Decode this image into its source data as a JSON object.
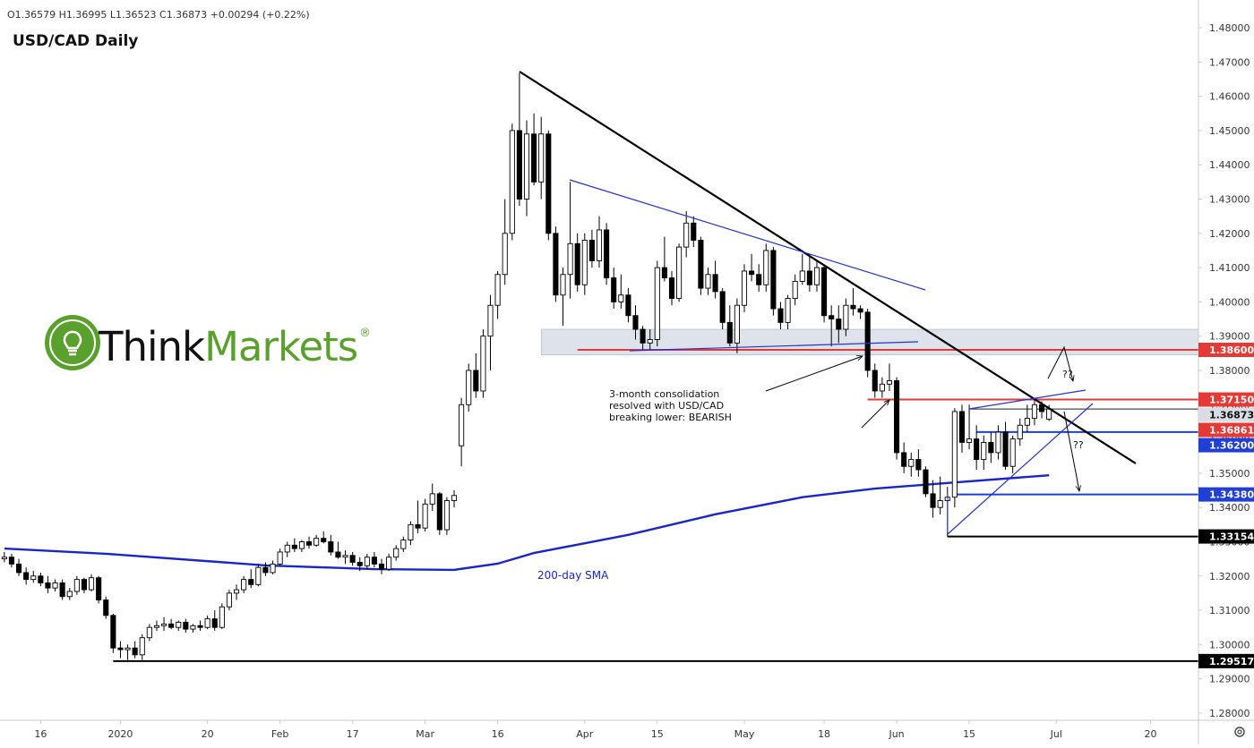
{
  "chart_data": {
    "type": "candlestick",
    "title": "USD/CAD Daily",
    "ohlc_legend": "O1.36579 H1.36995 L1.36523 C1.36873 +0.00294 (+0.22%)",
    "logo": {
      "text_1": "Think",
      "text_2": "Markets",
      "mark": "®"
    },
    "annotations": {
      "consolidation": [
        "3-month consolidation",
        "resolved with USD/CAD",
        "breaking lower: BEARISH"
      ],
      "question_marks": [
        "??",
        "??"
      ]
    },
    "colors": {
      "up": "#ffffff",
      "down": "#000000",
      "outline": "#000000"
    },
    "xlim": [
      -0.6,
      164.6
    ],
    "ylim": [
      1.2779,
      1.4881
    ],
    "xticks": [
      {
        "value": 5,
        "label": "16"
      },
      {
        "value": 16,
        "label": "2020"
      },
      {
        "value": 28,
        "label": "20"
      },
      {
        "value": 38,
        "label": "Feb"
      },
      {
        "value": 48,
        "label": "17"
      },
      {
        "value": 58,
        "label": "Mar"
      },
      {
        "value": 68,
        "label": "16"
      },
      {
        "value": 80,
        "label": "Apr"
      },
      {
        "value": 90,
        "label": "15"
      },
      {
        "value": 102,
        "label": "May"
      },
      {
        "value": 113,
        "label": "18"
      },
      {
        "value": 123,
        "label": "Jun"
      },
      {
        "value": 133,
        "label": "15"
      },
      {
        "value": 145,
        "label": "Jul"
      },
      {
        "value": 158,
        "label": "20"
      }
    ],
    "yticks": [
      {
        "value": 1.28,
        "label": "1.28000"
      },
      {
        "value": 1.29,
        "label": "1.29000"
      },
      {
        "value": 1.3,
        "label": "1.30000"
      },
      {
        "value": 1.31,
        "label": "1.31000"
      },
      {
        "value": 1.32,
        "label": "1.32000"
      },
      {
        "value": 1.33,
        "label": "1.33000"
      },
      {
        "value": 1.34,
        "label": "1.34000"
      },
      {
        "value": 1.35,
        "label": "1.35000"
      },
      {
        "value": 1.36,
        "label": "1.36000"
      },
      {
        "value": 1.37,
        "label": "1.37000"
      },
      {
        "value": 1.38,
        "label": "1.38000"
      },
      {
        "value": 1.39,
        "label": "1.39000"
      },
      {
        "value": 1.4,
        "label": "1.40000"
      },
      {
        "value": 1.41,
        "label": "1.41000"
      },
      {
        "value": 1.42,
        "label": "1.42000"
      },
      {
        "value": 1.43,
        "label": "1.43000"
      },
      {
        "value": 1.44,
        "label": "1.44000"
      },
      {
        "value": 1.45,
        "label": "1.45000"
      },
      {
        "value": 1.46,
        "label": "1.46000"
      },
      {
        "value": 1.47,
        "label": "1.47000"
      },
      {
        "value": 1.48,
        "label": "1.48000"
      }
    ],
    "candles": [
      [
        1.325,
        1.327,
        1.324,
        1.3255
      ],
      [
        1.3255,
        1.3265,
        1.3225,
        1.3235
      ],
      [
        1.3235,
        1.325,
        1.32,
        1.321
      ],
      [
        1.321,
        1.3225,
        1.3175,
        1.319
      ],
      [
        1.319,
        1.3215,
        1.318,
        1.32
      ],
      [
        1.32,
        1.321,
        1.317,
        1.318
      ],
      [
        1.318,
        1.32,
        1.315,
        1.3165
      ],
      [
        1.3165,
        1.319,
        1.3155,
        1.318
      ],
      [
        1.318,
        1.319,
        1.313,
        1.314
      ],
      [
        1.314,
        1.3165,
        1.313,
        1.3155
      ],
      [
        1.3155,
        1.32,
        1.3145,
        1.319
      ],
      [
        1.319,
        1.3195,
        1.315,
        1.316
      ],
      [
        1.316,
        1.3205,
        1.3155,
        1.3195
      ],
      [
        1.3195,
        1.32,
        1.312,
        1.313
      ],
      [
        1.313,
        1.314,
        1.3075,
        1.3085
      ],
      [
        1.3085,
        1.309,
        1.2975,
        1.299
      ],
      [
        1.299,
        1.301,
        1.296,
        1.2985
      ],
      [
        1.2985,
        1.3,
        1.2955,
        1.299
      ],
      [
        1.299,
        1.301,
        1.296,
        1.297
      ],
      [
        1.297,
        1.303,
        1.2955,
        1.302
      ],
      [
        1.302,
        1.306,
        1.301,
        1.305
      ],
      [
        1.305,
        1.307,
        1.304,
        1.3055
      ],
      [
        1.3055,
        1.308,
        1.304,
        1.306
      ],
      [
        1.306,
        1.3075,
        1.3045,
        1.305
      ],
      [
        1.305,
        1.307,
        1.304,
        1.3065
      ],
      [
        1.3065,
        1.3075,
        1.3035,
        1.3045
      ],
      [
        1.3045,
        1.306,
        1.3035,
        1.3055
      ],
      [
        1.3055,
        1.307,
        1.304,
        1.305
      ],
      [
        1.305,
        1.3085,
        1.3045,
        1.3075
      ],
      [
        1.3075,
        1.31,
        1.304,
        1.305
      ],
      [
        1.305,
        1.312,
        1.3045,
        1.311
      ],
      [
        1.311,
        1.316,
        1.31,
        1.315
      ],
      [
        1.315,
        1.3175,
        1.313,
        1.316
      ],
      [
        1.316,
        1.32,
        1.315,
        1.319
      ],
      [
        1.319,
        1.322,
        1.3165,
        1.3175
      ],
      [
        1.3175,
        1.3235,
        1.317,
        1.3225
      ],
      [
        1.3225,
        1.324,
        1.32,
        1.321
      ],
      [
        1.321,
        1.3245,
        1.3205,
        1.3235
      ],
      [
        1.3235,
        1.328,
        1.323,
        1.327
      ],
      [
        1.327,
        1.33,
        1.3255,
        1.329
      ],
      [
        1.329,
        1.331,
        1.327,
        1.328
      ],
      [
        1.328,
        1.3305,
        1.327,
        1.33
      ],
      [
        1.33,
        1.3315,
        1.328,
        1.329
      ],
      [
        1.329,
        1.332,
        1.3285,
        1.331
      ],
      [
        1.331,
        1.333,
        1.3295,
        1.33
      ],
      [
        1.33,
        1.332,
        1.326,
        1.327
      ],
      [
        1.327,
        1.33,
        1.325,
        1.3255
      ],
      [
        1.3255,
        1.3275,
        1.3235,
        1.326
      ],
      [
        1.326,
        1.327,
        1.323,
        1.324
      ],
      [
        1.324,
        1.3255,
        1.3215,
        1.323
      ],
      [
        1.323,
        1.3265,
        1.322,
        1.3255
      ],
      [
        1.3255,
        1.327,
        1.3225,
        1.3235
      ],
      [
        1.3235,
        1.325,
        1.3205,
        1.322
      ],
      [
        1.322,
        1.3265,
        1.3215,
        1.3255
      ],
      [
        1.3255,
        1.329,
        1.3245,
        1.328
      ],
      [
        1.328,
        1.3315,
        1.327,
        1.3305
      ],
      [
        1.3305,
        1.336,
        1.329,
        1.335
      ],
      [
        1.335,
        1.342,
        1.3325,
        1.334
      ],
      [
        1.334,
        1.3425,
        1.333,
        1.341
      ],
      [
        1.341,
        1.347,
        1.339,
        1.344
      ],
      [
        1.344,
        1.3445,
        1.332,
        1.3335
      ],
      [
        1.3335,
        1.343,
        1.332,
        1.342
      ],
      [
        1.342,
        1.345,
        1.34,
        1.3435
      ],
      [
        1.358,
        1.372,
        1.352,
        1.37
      ],
      [
        1.37,
        1.382,
        1.368,
        1.38
      ],
      [
        1.38,
        1.385,
        1.372,
        1.374
      ],
      [
        1.374,
        1.392,
        1.372,
        1.39
      ],
      [
        1.39,
        1.402,
        1.38,
        1.399
      ],
      [
        1.399,
        1.409,
        1.395,
        1.408
      ],
      [
        1.408,
        1.43,
        1.405,
        1.42
      ],
      [
        1.42,
        1.452,
        1.418,
        1.45
      ],
      [
        1.45,
        1.4668,
        1.428,
        1.43
      ],
      [
        1.43,
        1.453,
        1.425,
        1.449
      ],
      [
        1.449,
        1.455,
        1.434,
        1.435
      ],
      [
        1.435,
        1.454,
        1.43,
        1.449
      ],
      [
        1.449,
        1.45,
        1.418,
        1.42
      ],
      [
        1.42,
        1.422,
        1.4,
        1.402
      ],
      [
        1.402,
        1.41,
        1.393,
        1.408
      ],
      [
        1.408,
        1.435,
        1.401,
        1.417
      ],
      [
        1.417,
        1.42,
        1.403,
        1.405
      ],
      [
        1.405,
        1.42,
        1.402,
        1.418
      ],
      [
        1.418,
        1.421,
        1.41,
        1.412
      ],
      [
        1.412,
        1.425,
        1.41,
        1.421
      ],
      [
        1.421,
        1.423,
        1.405,
        1.407
      ],
      [
        1.407,
        1.41,
        1.398,
        1.4
      ],
      [
        1.4,
        1.408,
        1.398,
        1.402
      ],
      [
        1.402,
        1.404,
        1.394,
        1.396
      ],
      [
        1.396,
        1.399,
        1.389,
        1.392
      ],
      [
        1.392,
        1.393,
        1.386,
        1.388
      ],
      [
        1.388,
        1.392,
        1.386,
        1.389
      ],
      [
        1.389,
        1.412,
        1.387,
        1.41
      ],
      [
        1.41,
        1.419,
        1.406,
        1.407
      ],
      [
        1.407,
        1.409,
        1.399,
        1.401
      ],
      [
        1.401,
        1.417,
        1.4,
        1.416
      ],
      [
        1.416,
        1.4265,
        1.413,
        1.423
      ],
      [
        1.423,
        1.425,
        1.416,
        1.418
      ],
      [
        1.418,
        1.419,
        1.402,
        1.404
      ],
      [
        1.404,
        1.41,
        1.402,
        1.408
      ],
      [
        1.408,
        1.412,
        1.401,
        1.403
      ],
      [
        1.403,
        1.404,
        1.392,
        1.394
      ],
      [
        1.394,
        1.399,
        1.387,
        1.388
      ],
      [
        1.388,
        1.401,
        1.385,
        1.399
      ],
      [
        1.399,
        1.411,
        1.397,
        1.409
      ],
      [
        1.409,
        1.414,
        1.406,
        1.408
      ],
      [
        1.408,
        1.411,
        1.403,
        1.405
      ],
      [
        1.405,
        1.417,
        1.403,
        1.415
      ],
      [
        1.415,
        1.416,
        1.396,
        1.398
      ],
      [
        1.398,
        1.4,
        1.392,
        1.394
      ],
      [
        1.394,
        1.402,
        1.392,
        1.401
      ],
      [
        1.401,
        1.408,
        1.399,
        1.406
      ],
      [
        1.406,
        1.414,
        1.405,
        1.409
      ],
      [
        1.409,
        1.414,
        1.403,
        1.405
      ],
      [
        1.405,
        1.412,
        1.403,
        1.41
      ],
      [
        1.41,
        1.411,
        1.394,
        1.396
      ],
      [
        1.396,
        1.399,
        1.387,
        1.395
      ],
      [
        1.395,
        1.399,
        1.388,
        1.392
      ],
      [
        1.392,
        1.401,
        1.39,
        1.399
      ],
      [
        1.399,
        1.404,
        1.396,
        1.398
      ],
      [
        1.398,
        1.399,
        1.395,
        1.397
      ],
      [
        1.397,
        1.398,
        1.378,
        1.38
      ],
      [
        1.38,
        1.382,
        1.372,
        1.374
      ],
      [
        1.374,
        1.378,
        1.372,
        1.376
      ],
      [
        1.376,
        1.382,
        1.374,
        1.377
      ],
      [
        1.377,
        1.378,
        1.354,
        1.356
      ],
      [
        1.356,
        1.359,
        1.35,
        1.352
      ],
      [
        1.352,
        1.356,
        1.349,
        1.354
      ],
      [
        1.354,
        1.357,
        1.349,
        1.351
      ],
      [
        1.351,
        1.352,
        1.343,
        1.344
      ],
      [
        1.344,
        1.348,
        1.337,
        1.34
      ],
      [
        1.34,
        1.349,
        1.338,
        1.342
      ],
      [
        1.342,
        1.346,
        1.3315,
        1.343
      ],
      [
        1.343,
        1.369,
        1.34,
        1.368
      ],
      [
        1.368,
        1.37,
        1.356,
        1.359
      ],
      [
        1.359,
        1.37,
        1.357,
        1.36
      ],
      [
        1.36,
        1.364,
        1.351,
        1.354
      ],
      [
        1.354,
        1.361,
        1.351,
        1.359
      ],
      [
        1.359,
        1.362,
        1.353,
        1.356
      ],
      [
        1.356,
        1.364,
        1.354,
        1.362
      ],
      [
        1.362,
        1.365,
        1.351,
        1.352
      ],
      [
        1.352,
        1.361,
        1.35,
        1.36
      ],
      [
        1.36,
        1.366,
        1.358,
        1.364
      ],
      [
        1.364,
        1.37,
        1.362,
        1.366
      ],
      [
        1.366,
        1.3715,
        1.364,
        1.37
      ],
      [
        1.37,
        1.371,
        1.366,
        1.368
      ],
      [
        1.36579,
        1.36995,
        1.36523,
        1.36873
      ]
    ],
    "sma": {
      "name": "200-day SMA",
      "color": "#1a26c9",
      "x": [
        0,
        14,
        36,
        51,
        62,
        68,
        73,
        86,
        98,
        110,
        120,
        129,
        144
      ],
      "values": [
        1.328,
        1.3265,
        1.3231,
        1.322,
        1.3218,
        1.3236,
        1.3267,
        1.332,
        1.338,
        1.343,
        1.3455,
        1.347,
        1.3494
      ]
    },
    "zones": [
      {
        "from": 74,
        "range": [
          1.3845,
          1.392
        ]
      }
    ],
    "levels": [
      {
        "value": 1.386,
        "label": "1.38600",
        "color": "#e53935",
        "from": 79
      },
      {
        "value": 1.3715,
        "label": "1.37150",
        "color": "#e53935",
        "from": 119
      },
      {
        "value": 1.36873,
        "label": "1.36873",
        "color": "#d9dce3",
        "from": 133
      },
      {
        "value": 1.36861,
        "label": "1.36861",
        "color": "#e53935"
      },
      {
        "value": 1.362,
        "label": "1.36200",
        "color": "#1f3fd6",
        "from": 134
      },
      {
        "value": 1.3438,
        "label": "1.34380",
        "color": "#1f3fd6",
        "from": 131
      },
      {
        "value": 1.33154,
        "label": "1.33154",
        "color": "#000000",
        "from": 130
      },
      {
        "value": 1.29517,
        "label": "1.29517",
        "color": "#000000",
        "from": 15
      }
    ]
  }
}
